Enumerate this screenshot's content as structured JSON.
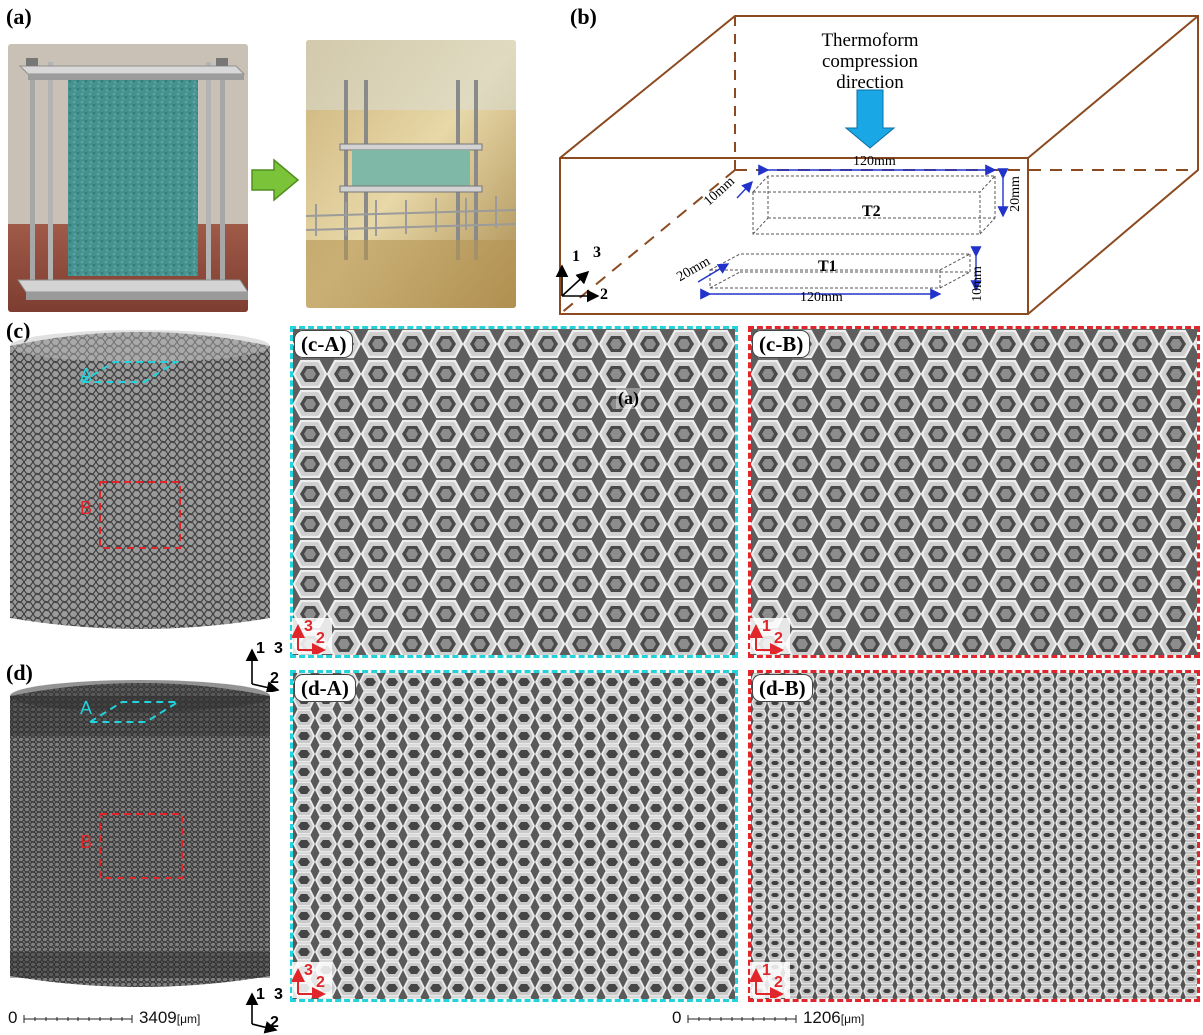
{
  "panels": {
    "a": {
      "label": "(a)"
    },
    "b": {
      "label": "(b)",
      "direction_text": [
        "Thermoform",
        "compression",
        "direction"
      ],
      "specimen_t1": "T1",
      "specimen_t2": "T2",
      "dims": {
        "t2_length": "120mm",
        "t2_depth": "10mm",
        "t2_height": "20mm",
        "t1_length": "120mm",
        "t1_depth": "20mm",
        "t1_height": "10mm"
      },
      "axes": {
        "a1": "1",
        "a2": "2",
        "a3": "3"
      }
    },
    "c": {
      "label": "(c)",
      "region_a": "A",
      "region_b": "B",
      "inset_a": "(c-A)",
      "inset_b": "(c-B)",
      "annotation": "(a)",
      "axes_a": {
        "up": "3",
        "right": "2"
      },
      "axes_b": {
        "up": "1",
        "right": "2"
      }
    },
    "d": {
      "label": "(d)",
      "region_a": "A",
      "region_b": "B",
      "inset_a": "(d-A)",
      "inset_b": "(d-B)",
      "axes_a": {
        "up": "3",
        "right": "2"
      },
      "axes_b": {
        "up": "1",
        "right": "2"
      }
    },
    "triad": {
      "a1": "1",
      "a2": "2",
      "a3": "3"
    }
  },
  "scalebars": {
    "left": {
      "start": "0",
      "end": "3409",
      "unit": "[μm]"
    },
    "right": {
      "start": "0",
      "end": "1206",
      "unit": "[μm]"
    }
  },
  "colors": {
    "cyan": "#22d3de",
    "red": "#e0262b",
    "brown": "#8b4a20",
    "blue": "#2233cc",
    "arrow_blue": "#1aa7e6",
    "arrow_green": "#7bc43a"
  }
}
